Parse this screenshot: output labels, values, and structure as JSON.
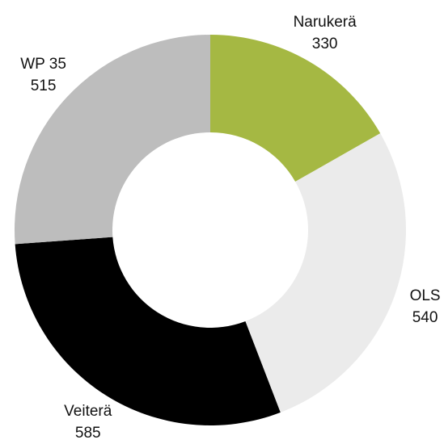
{
  "chart_data": {
    "type": "donut",
    "categories": [
      "Narukerä",
      "OLS",
      "Veiterä",
      "WP 35"
    ],
    "values": [
      330,
      540,
      585,
      515
    ],
    "colors": [
      "#a5b843",
      "#ebebeb",
      "#000000",
      "#bdbdbd"
    ]
  }
}
